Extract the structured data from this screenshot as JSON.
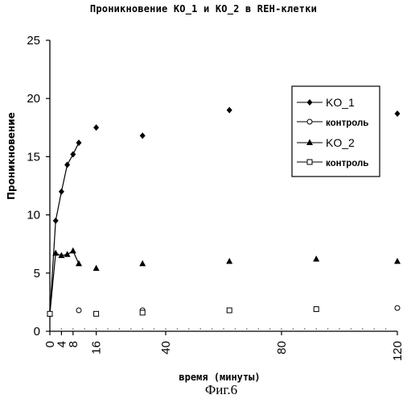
{
  "caption": "Фиг.6",
  "chart_data": {
    "type": "line",
    "title": "Проникновение KO_1 и KO_2 в REH-клетки",
    "xlabel": "время (минуты)",
    "ylabel": "Проникновение",
    "xlim": [
      0,
      120
    ],
    "ylim": [
      0,
      25
    ],
    "x_ticks": [
      0,
      4,
      8,
      16,
      40,
      80,
      120
    ],
    "y_ticks": [
      0,
      5,
      10,
      15,
      20,
      25
    ],
    "legend_position": "top-right",
    "series": [
      {
        "name": "KO_1",
        "marker": "filled-diamond",
        "line": true,
        "x": [
          0,
          2,
          4,
          6,
          8,
          10,
          16,
          32,
          62,
          120
        ],
        "y": [
          1.5,
          9.5,
          12.0,
          14.3,
          15.2,
          16.2,
          17.5,
          16.8,
          19.0,
          18.7
        ]
      },
      {
        "name": "контроль",
        "marker": "open-circle",
        "line": false,
        "x": [
          0,
          10,
          32,
          120
        ],
        "y": [
          1.5,
          1.8,
          1.8,
          2.0
        ]
      },
      {
        "name": "KO_2",
        "marker": "filled-triangle",
        "line": true,
        "x": [
          0,
          2,
          4,
          6,
          8,
          10,
          16,
          32,
          62,
          92,
          120
        ],
        "y": [
          1.5,
          6.7,
          6.5,
          6.6,
          6.9,
          5.8,
          5.4,
          5.8,
          6.0,
          6.2,
          6.0
        ]
      },
      {
        "name": "контроль",
        "marker": "open-square",
        "line": false,
        "x": [
          0,
          16,
          32,
          62,
          92
        ],
        "y": [
          1.5,
          1.5,
          1.6,
          1.8,
          1.9
        ]
      }
    ]
  }
}
